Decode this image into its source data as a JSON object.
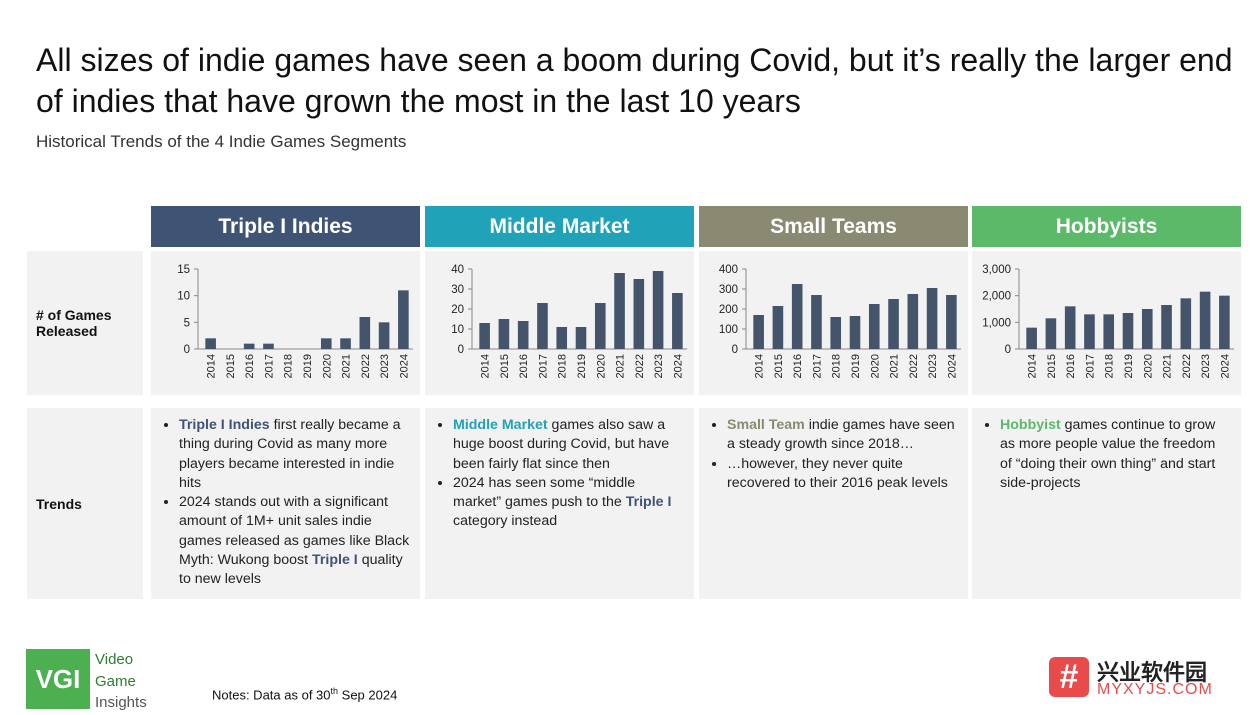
{
  "title": "All sizes of indie games have seen a boom during Covid, but it’s really the larger end of indies that have grown the most in the last 10 years",
  "subtitle": "Historical Trends of the 4 Indie Games Segments",
  "row_labels": {
    "games": "# of Games Released",
    "trends": "Trends"
  },
  "segments": [
    {
      "name": "Triple I Indies",
      "color": "#3f5474",
      "hl_color": "#3f5474",
      "trends": [
        {
          "hl": "Triple I Indies",
          "text": " first really became a thing during Covid as many more players became interested in indie hits"
        },
        {
          "pre": "2024 stands out with a significant amount of 1M+ unit sales indie games released as games like Black Myth: Wukong boost ",
          "hl": "Triple I",
          "text": " quality to new levels"
        }
      ]
    },
    {
      "name": "Middle Market",
      "color": "#20a3b8",
      "hl_color": "#20a3b8",
      "trends": [
        {
          "hl": "Middle Market",
          "text": " games also saw a huge boost during Covid, but have been fairly flat since then"
        },
        {
          "pre": "2024 has seen some “middle market” games push to the ",
          "hl": "Triple I",
          "hl_color": "#3f5474",
          "text": " category instead"
        }
      ]
    },
    {
      "name": "Small Teams",
      "color": "#8a8a72",
      "hl_color": "#8a8a72",
      "trends": [
        {
          "hl": "Small Team",
          "text": " indie games have seen a steady growth since 2018…"
        },
        {
          "pre": "…however, they never quite recovered to their 2016 peak levels"
        }
      ]
    },
    {
      "name": "Hobbyists",
      "color": "#5cb96a",
      "hl_color": "#5cb96a",
      "trends": [
        {
          "hl": "Hobbyist",
          "text": " games continue to grow as more people value the freedom of “doing their own thing” and start side-projects"
        }
      ]
    }
  ],
  "chart_data": [
    {
      "type": "bar",
      "title": "",
      "categories": [
        "2014",
        "2015",
        "2016",
        "2017",
        "2018",
        "2019",
        "2020",
        "2021",
        "2022",
        "2023",
        "2024"
      ],
      "values": [
        2,
        0,
        1,
        1,
        0,
        0,
        2,
        2,
        6,
        5,
        11
      ],
      "ylim": [
        0,
        15
      ],
      "yticks": [
        "0",
        "5",
        "10",
        "15"
      ],
      "ytick_values": [
        0,
        5,
        10,
        15
      ],
      "bar_color": "#44546a"
    },
    {
      "type": "bar",
      "title": "",
      "categories": [
        "2014",
        "2015",
        "2016",
        "2017",
        "2018",
        "2019",
        "2020",
        "2021",
        "2022",
        "2023",
        "2024"
      ],
      "values": [
        13,
        15,
        14,
        23,
        11,
        11,
        23,
        38,
        35,
        39,
        28
      ],
      "ylim": [
        0,
        40
      ],
      "yticks": [
        "0",
        "10",
        "20",
        "30",
        "40"
      ],
      "ytick_values": [
        0,
        10,
        20,
        30,
        40
      ],
      "bar_color": "#44546a"
    },
    {
      "type": "bar",
      "title": "",
      "categories": [
        "2014",
        "2015",
        "2016",
        "2017",
        "2018",
        "2019",
        "2020",
        "2021",
        "2022",
        "2023",
        "2024"
      ],
      "values": [
        170,
        215,
        325,
        270,
        160,
        165,
        225,
        250,
        275,
        305,
        270
      ],
      "ylim": [
        0,
        400
      ],
      "yticks": [
        "0",
        "100",
        "200",
        "300",
        "400"
      ],
      "ytick_values": [
        0,
        100,
        200,
        300,
        400
      ],
      "bar_color": "#44546a"
    },
    {
      "type": "bar",
      "title": "",
      "categories": [
        "2014",
        "2015",
        "2016",
        "2017",
        "2018",
        "2019",
        "2020",
        "2021",
        "2022",
        "2023",
        "2024"
      ],
      "values": [
        800,
        1150,
        1600,
        1300,
        1300,
        1350,
        1500,
        1650,
        1900,
        2150,
        2000
      ],
      "ylim": [
        0,
        3000
      ],
      "yticks": [
        "0",
        "1,000",
        "2,000",
        "3,000"
      ],
      "ytick_values": [
        0,
        1000,
        2000,
        3000
      ],
      "bar_color": "#44546a"
    }
  ],
  "footer": {
    "logo": "VGI",
    "logo_lines": [
      "Video",
      "Game",
      "Insights"
    ],
    "notes_pre": "Notes: Data as of 30",
    "notes_sup": "th",
    "notes_post": " Sep 2024"
  },
  "watermark": {
    "icon": "#",
    "cn": "兴业软件园",
    "en": "MYXYJS.COM"
  }
}
